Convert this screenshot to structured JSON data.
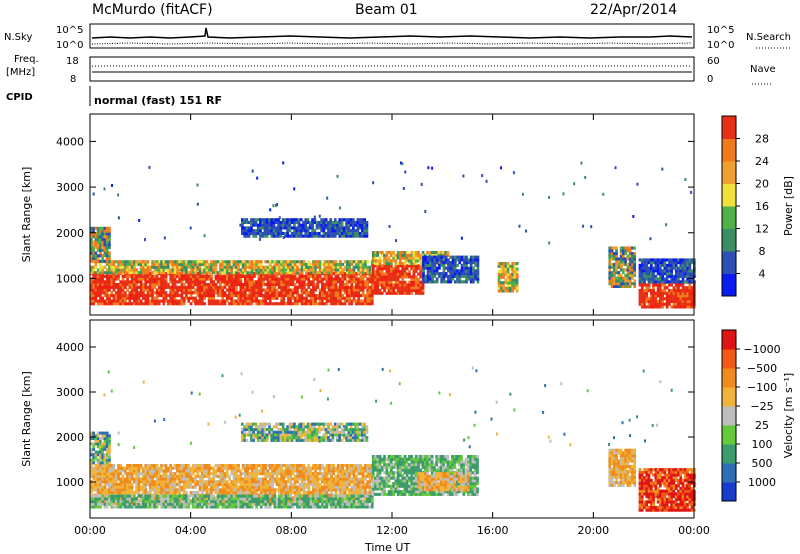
{
  "header": {
    "station": "McMurdo (fitACF)",
    "beam": "Beam 01",
    "date": "22/Apr/2014"
  },
  "summary_panel": {
    "nsky_label": "N.Sky",
    "nsky_ticks": [
      "10^5",
      "10^0"
    ],
    "nsearch_label": "N.Search",
    "nsearch_ticks": [
      "10^5",
      "10^0"
    ],
    "freq_label": "Freq.",
    "freq_unit": "[MHz]",
    "freq_ticks": [
      "18",
      "8"
    ],
    "nave_label": "Nave",
    "nave_ticks": [
      "60",
      "0"
    ],
    "cpid_label": "CPID",
    "cpid_text": "normal (fast) 151 RF"
  },
  "chart_data": [
    {
      "type": "heatmap",
      "name": "power",
      "ylabel": "Slant Range [km]",
      "xlabel": "",
      "ylim": [
        200,
        4600
      ],
      "yticks": [
        1000,
        2000,
        3000,
        4000
      ],
      "xticks": [
        "00:00",
        "04:00",
        "08:00",
        "12:00",
        "16:00",
        "20:00",
        "00:00"
      ],
      "x_hours": [
        0,
        4,
        8,
        12,
        16,
        20,
        24
      ],
      "colorbar": {
        "label": "Power [dB]",
        "tick_labels": [
          "4",
          "8",
          "12",
          "16",
          "20",
          "24",
          "28"
        ],
        "colors": [
          "#0a1bf0",
          "#2d4fb4",
          "#3c8c64",
          "#52b048",
          "#f0e03c",
          "#f0a030",
          "#f07a1e",
          "#e83018"
        ]
      },
      "regions": [
        {
          "t0": 0.0,
          "t1": 11.2,
          "r0": 420,
          "r1": 1100,
          "level": "high"
        },
        {
          "t0": 0.0,
          "t1": 11.2,
          "r0": 1100,
          "r1": 1350,
          "level": "mid"
        },
        {
          "t0": 0.0,
          "t1": 0.8,
          "r0": 1350,
          "r1": 2100,
          "level": "mixed"
        },
        {
          "t0": 6.0,
          "t1": 11.0,
          "r0": 1900,
          "r1": 2300,
          "level": "low"
        },
        {
          "t0": 11.2,
          "t1": 13.2,
          "r0": 650,
          "r1": 1300,
          "level": "high"
        },
        {
          "t0": 11.2,
          "t1": 14.2,
          "r0": 1300,
          "r1": 1550,
          "level": "mid"
        },
        {
          "t0": 13.2,
          "t1": 15.4,
          "r0": 900,
          "r1": 1500,
          "level": "low"
        },
        {
          "t0": 16.2,
          "t1": 17.0,
          "r0": 700,
          "r1": 1350,
          "level": "mid"
        },
        {
          "t0": 20.6,
          "t1": 21.6,
          "r0": 800,
          "r1": 1700,
          "level": "mixed"
        },
        {
          "t0": 21.8,
          "t1": 24.0,
          "r0": 350,
          "r1": 900,
          "level": "high"
        },
        {
          "t0": 21.8,
          "t1": 24.0,
          "r0": 900,
          "r1": 1400,
          "level": "low"
        }
      ]
    },
    {
      "type": "heatmap",
      "name": "velocity",
      "ylabel": "Slant Range [km]",
      "xlabel": "Time UT",
      "ylim": [
        200,
        4600
      ],
      "yticks": [
        1000,
        2000,
        3000,
        4000
      ],
      "xticks": [
        "00:00",
        "04:00",
        "08:00",
        "12:00",
        "16:00",
        "20:00",
        "00:00"
      ],
      "x_hours": [
        0,
        4,
        8,
        12,
        16,
        20,
        24
      ],
      "colorbar": {
        "label": "Velocity [m s⁻¹]",
        "tick_labels": [
          "1000",
          "500",
          "100",
          "25",
          "−25",
          "−100",
          "−500",
          "−1000"
        ],
        "colors": [
          "#1a3ccc",
          "#2d6eb4",
          "#3c9c6c",
          "#66c83c",
          "#bebebe",
          "#f0b43c",
          "#f08c1e",
          "#f05a14",
          "#e01414"
        ]
      },
      "regions": [
        {
          "t0": 0.0,
          "t1": 11.2,
          "r0": 500,
          "r1": 1400,
          "level": "orange"
        },
        {
          "t0": 0.0,
          "t1": 11.2,
          "r0": 420,
          "r1": 700,
          "level": "green"
        },
        {
          "t0": 0.0,
          "t1": 0.8,
          "r0": 1400,
          "r1": 2100,
          "level": "mixed"
        },
        {
          "t0": 6.0,
          "t1": 11.0,
          "r0": 1900,
          "r1": 2300,
          "level": "mixed"
        },
        {
          "t0": 11.2,
          "t1": 15.4,
          "r0": 700,
          "r1": 1550,
          "level": "green"
        },
        {
          "t0": 13.0,
          "t1": 15.0,
          "r0": 800,
          "r1": 1200,
          "level": "orange"
        },
        {
          "t0": 20.6,
          "t1": 21.6,
          "r0": 900,
          "r1": 1700,
          "level": "orange"
        },
        {
          "t0": 21.8,
          "t1": 24.0,
          "r0": 350,
          "r1": 1300,
          "level": "red"
        }
      ]
    }
  ]
}
